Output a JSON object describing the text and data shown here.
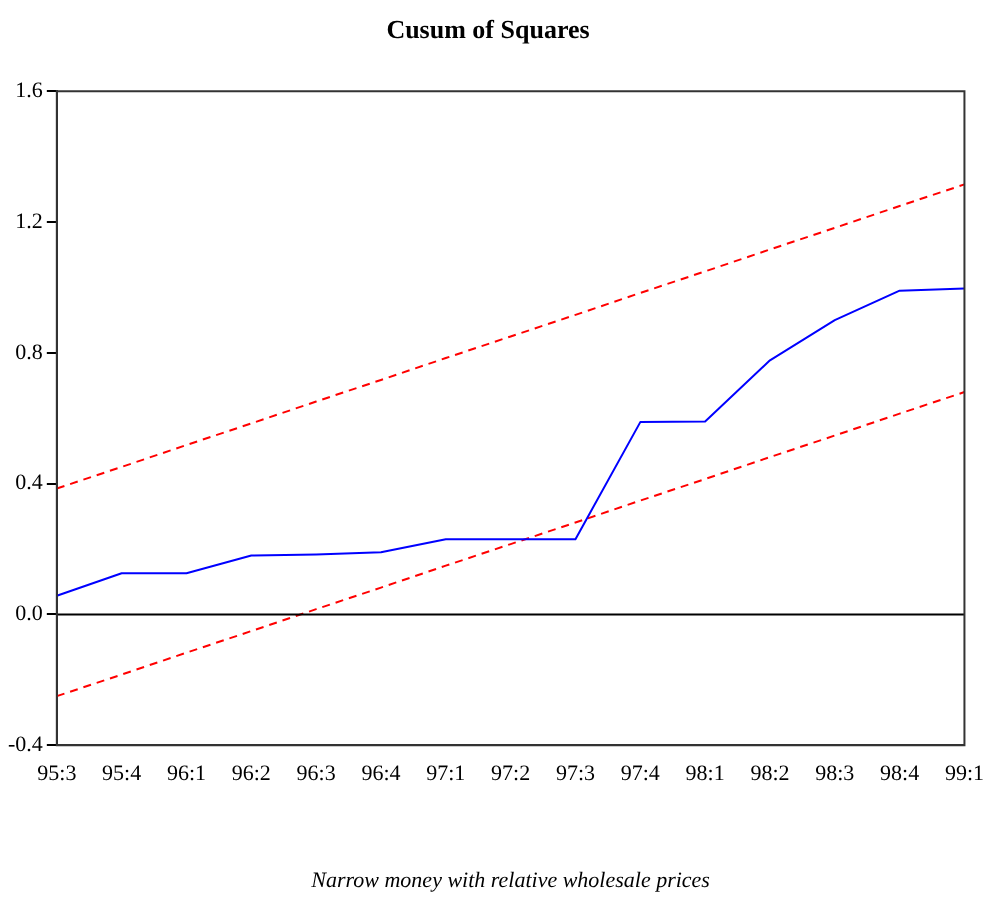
{
  "chart_data": {
    "type": "line",
    "title": "Cusum of Squares",
    "xlabel": "Narrow money with relative wholesale prices",
    "categories": [
      "95:3",
      "95:4",
      "96:1",
      "96:2",
      "96:3",
      "96:4",
      "97:1",
      "97:2",
      "97:3",
      "97:4",
      "98:1",
      "98:2",
      "98:3",
      "98:4",
      "99:1"
    ],
    "series": [
      {
        "color": "#0000ff",
        "line_style": "solid",
        "values": [
          0.057,
          0.126,
          0.126,
          0.18,
          0.183,
          0.19,
          0.23,
          0.23,
          0.23,
          0.588,
          0.59,
          0.777,
          0.9,
          0.99,
          0.997
        ]
      },
      {
        "color": "#ff0000",
        "line_style": "dashed",
        "values": [
          0.385,
          0.451,
          0.518,
          0.584,
          0.651,
          0.717,
          0.784,
          0.85,
          0.916,
          0.983,
          1.049,
          1.116,
          1.182,
          1.249,
          1.315
        ]
      },
      {
        "color": "#ff0000",
        "line_style": "dashed",
        "values": [
          -0.25,
          -0.184,
          -0.117,
          -0.051,
          0.016,
          0.082,
          0.149,
          0.215,
          0.281,
          0.348,
          0.414,
          0.481,
          0.547,
          0.614,
          0.68
        ]
      }
    ],
    "ylim": [
      -0.4,
      1.6
    ],
    "yticks": [
      {
        "value": -0.4,
        "label": "-0.4"
      },
      {
        "value": 0,
        "label": "0.0"
      },
      {
        "value": 0.4,
        "label": "0.4"
      },
      {
        "value": 0.8,
        "label": "0.8"
      },
      {
        "value": 1.2,
        "label": "1.2"
      },
      {
        "value": 1.6,
        "label": "1.6"
      }
    ],
    "ref_lines": [
      {
        "axis": "y",
        "value": 0,
        "color": "#000000"
      }
    ],
    "grid": false,
    "legend": false,
    "marker": "none"
  }
}
